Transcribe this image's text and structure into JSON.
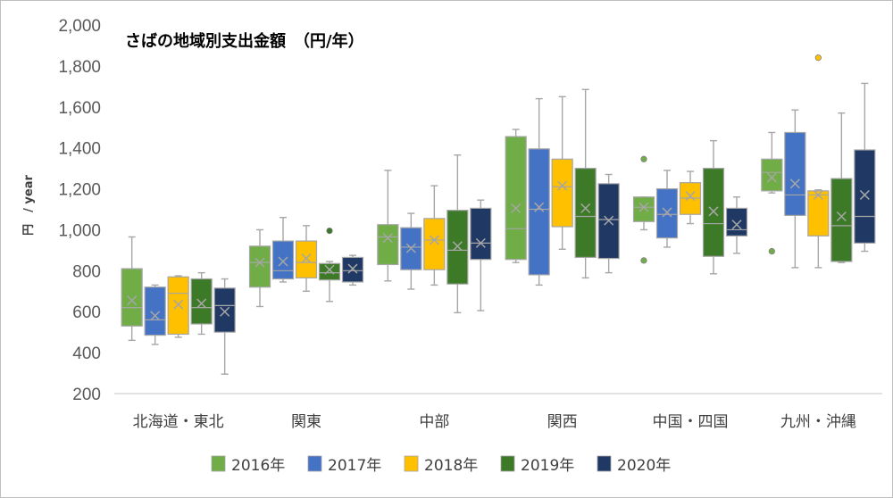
{
  "chart_data": {
    "type": "box",
    "title": "さばの地域別支出金額　（円/年）",
    "ylabel": "円　/ year",
    "ylim": [
      200,
      2000
    ],
    "yticks": [
      200,
      400,
      600,
      800,
      1000,
      1200,
      1400,
      1600,
      1800,
      2000
    ],
    "ytick_labels": [
      "200",
      "400",
      "600",
      "800",
      "1,000",
      "1,200",
      "1,400",
      "1,600",
      "1,800",
      "2,000"
    ],
    "categories": [
      "北海道・東北",
      "関東",
      "中部",
      "関西",
      "中国・四国",
      "九州・沖縄"
    ],
    "legend_position": "bottom",
    "grid": false,
    "series": [
      {
        "name": "2016年",
        "color": "#70ad47",
        "boxes": [
          {
            "min": 460,
            "q1": 530,
            "median": 620,
            "q3": 810,
            "max": 965,
            "mean": 655,
            "outliers": []
          },
          {
            "min": 625,
            "q1": 720,
            "median": 840,
            "q3": 920,
            "max": 1000,
            "mean": 840,
            "outliers": []
          },
          {
            "min": 750,
            "q1": 830,
            "median": 965,
            "q3": 1025,
            "max": 1290,
            "mean": 960,
            "outliers": []
          },
          {
            "min": 840,
            "q1": 855,
            "median": 1005,
            "q3": 1455,
            "max": 1490,
            "mean": 1105,
            "outliers": []
          },
          {
            "min": 1000,
            "q1": 1040,
            "median": 1110,
            "q3": 1160,
            "max": 1160,
            "mean": 1110,
            "outliers": [
              850,
              1345
            ]
          },
          {
            "min": 1180,
            "q1": 1190,
            "median": 1280,
            "q3": 1345,
            "max": 1475,
            "mean": 1255,
            "outliers": [
              895
            ]
          }
        ]
      },
      {
        "name": "2017年",
        "color": "#4472c4",
        "boxes": [
          {
            "min": 440,
            "q1": 485,
            "median": 560,
            "q3": 720,
            "max": 730,
            "mean": 580,
            "outliers": []
          },
          {
            "min": 745,
            "q1": 760,
            "median": 800,
            "q3": 945,
            "max": 1060,
            "mean": 845,
            "outliers": []
          },
          {
            "min": 710,
            "q1": 805,
            "median": 915,
            "q3": 1010,
            "max": 1080,
            "mean": 910,
            "outliers": []
          },
          {
            "min": 730,
            "q1": 780,
            "median": 1100,
            "q3": 1395,
            "max": 1640,
            "mean": 1110,
            "outliers": []
          },
          {
            "min": 915,
            "q1": 960,
            "median": 1075,
            "q3": 1200,
            "max": 1290,
            "mean": 1085,
            "outliers": []
          },
          {
            "min": 815,
            "q1": 1070,
            "median": 1170,
            "q3": 1475,
            "max": 1585,
            "mean": 1225,
            "outliers": []
          }
        ]
      },
      {
        "name": "2018年",
        "color": "#ffc000",
        "boxes": [
          {
            "min": 475,
            "q1": 490,
            "median": 690,
            "q3": 770,
            "max": 775,
            "mean": 635,
            "outliers": []
          },
          {
            "min": 700,
            "q1": 765,
            "median": 840,
            "q3": 945,
            "max": 1020,
            "mean": 860,
            "outliers": []
          },
          {
            "min": 730,
            "q1": 805,
            "median": 950,
            "q3": 1055,
            "max": 1215,
            "mean": 950,
            "outliers": []
          },
          {
            "min": 905,
            "q1": 1015,
            "median": 1210,
            "q3": 1345,
            "max": 1650,
            "mean": 1215,
            "outliers": []
          },
          {
            "min": 1030,
            "q1": 1075,
            "median": 1155,
            "q3": 1230,
            "max": 1285,
            "mean": 1165,
            "outliers": []
          },
          {
            "min": 815,
            "q1": 970,
            "median": 1170,
            "q3": 1190,
            "max": 1195,
            "mean": 1170,
            "outliers": [
              1840
            ]
          }
        ]
      },
      {
        "name": "2019年",
        "color": "#3d7a27",
        "boxes": [
          {
            "min": 490,
            "q1": 540,
            "median": 620,
            "q3": 760,
            "max": 790,
            "mean": 640,
            "outliers": []
          },
          {
            "min": 650,
            "q1": 755,
            "median": 790,
            "q3": 835,
            "max": 845,
            "mean": 805,
            "outliers": [
              995
            ]
          },
          {
            "min": 595,
            "q1": 735,
            "median": 900,
            "q3": 1095,
            "max": 1365,
            "mean": 920,
            "outliers": []
          },
          {
            "min": 765,
            "q1": 865,
            "median": 1065,
            "q3": 1300,
            "max": 1685,
            "mean": 1105,
            "outliers": []
          },
          {
            "min": 785,
            "q1": 870,
            "median": 1030,
            "q3": 1300,
            "max": 1435,
            "mean": 1090,
            "outliers": []
          },
          {
            "min": 840,
            "q1": 845,
            "median": 1020,
            "q3": 1250,
            "max": 1570,
            "mean": 1065,
            "outliers": []
          }
        ]
      },
      {
        "name": "2020年",
        "color": "#203864",
        "boxes": [
          {
            "min": 295,
            "q1": 500,
            "median": 630,
            "q3": 715,
            "max": 760,
            "mean": 600,
            "outliers": []
          },
          {
            "min": 730,
            "q1": 745,
            "median": 800,
            "q3": 865,
            "max": 875,
            "mean": 810,
            "outliers": []
          },
          {
            "min": 605,
            "q1": 855,
            "median": 935,
            "q3": 1105,
            "max": 1145,
            "mean": 935,
            "outliers": []
          },
          {
            "min": 790,
            "q1": 860,
            "median": 1050,
            "q3": 1225,
            "max": 1270,
            "mean": 1045,
            "outliers": []
          },
          {
            "min": 885,
            "q1": 970,
            "median": 1000,
            "q3": 1105,
            "max": 1160,
            "mean": 1025,
            "outliers": []
          },
          {
            "min": 895,
            "q1": 935,
            "median": 1065,
            "q3": 1390,
            "max": 1715,
            "mean": 1170,
            "outliers": []
          }
        ]
      }
    ]
  }
}
